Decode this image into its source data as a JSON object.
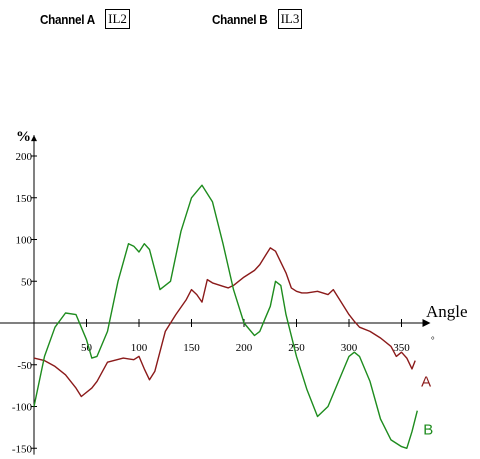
{
  "header": {
    "channel_a_label": "Channel A",
    "channel_a_value": "IL2",
    "channel_b_label": "Channel B",
    "channel_b_value": "IL3"
  },
  "colors": {
    "series_a": "#8b1a1a",
    "series_b": "#1e8c1e",
    "axis": "#000000"
  },
  "chart_data": {
    "type": "line",
    "xlabel": "Angle",
    "ylabel": "%",
    "x_unit_mark": "°",
    "xlim": [
      0,
      370
    ],
    "ylim": [
      -160,
      225
    ],
    "x_ticks": [
      50,
      100,
      150,
      200,
      250,
      300,
      350
    ],
    "y_ticks": [
      -150,
      -100,
      -50,
      50,
      100,
      150,
      200
    ],
    "series": [
      {
        "name": "A",
        "x": [
          0,
          10,
          20,
          30,
          40,
          45,
          55,
          60,
          70,
          85,
          95,
          100,
          105,
          110,
          115,
          125,
          135,
          145,
          150,
          155,
          160,
          165,
          170,
          180,
          185,
          190,
          200,
          210,
          215,
          220,
          225,
          230,
          240,
          245,
          250,
          255,
          260,
          270,
          280,
          285,
          290,
          300,
          305,
          310,
          320,
          330,
          340,
          345,
          350,
          355,
          360,
          363
        ],
        "y": [
          -42,
          -45,
          -52,
          -62,
          -78,
          -88,
          -78,
          -70,
          -47,
          -42,
          -44,
          -40,
          -55,
          -68,
          -58,
          -10,
          10,
          28,
          40,
          34,
          25,
          52,
          48,
          44,
          42,
          45,
          55,
          63,
          70,
          80,
          90,
          86,
          60,
          42,
          38,
          36,
          36,
          38,
          34,
          40,
          30,
          10,
          2,
          -5,
          -10,
          -18,
          -28,
          -40,
          -35,
          -42,
          -55,
          -45
        ]
      },
      {
        "name": "B",
        "x": [
          0,
          10,
          20,
          30,
          40,
          50,
          55,
          60,
          70,
          80,
          90,
          95,
          100,
          105,
          110,
          120,
          130,
          140,
          150,
          160,
          170,
          180,
          190,
          200,
          210,
          215,
          220,
          225,
          230,
          235,
          240,
          250,
          260,
          270,
          280,
          290,
          300,
          305,
          310,
          320,
          330,
          340,
          350,
          355,
          360,
          365
        ],
        "y": [
          -100,
          -40,
          -5,
          12,
          10,
          -20,
          -42,
          -40,
          -10,
          50,
          95,
          92,
          85,
          95,
          88,
          40,
          50,
          110,
          150,
          165,
          145,
          95,
          40,
          0,
          -15,
          -10,
          5,
          20,
          50,
          45,
          10,
          -40,
          -80,
          -112,
          -100,
          -70,
          -40,
          -35,
          -40,
          -70,
          -115,
          -140,
          -148,
          -150,
          -130,
          -105
        ]
      }
    ]
  }
}
